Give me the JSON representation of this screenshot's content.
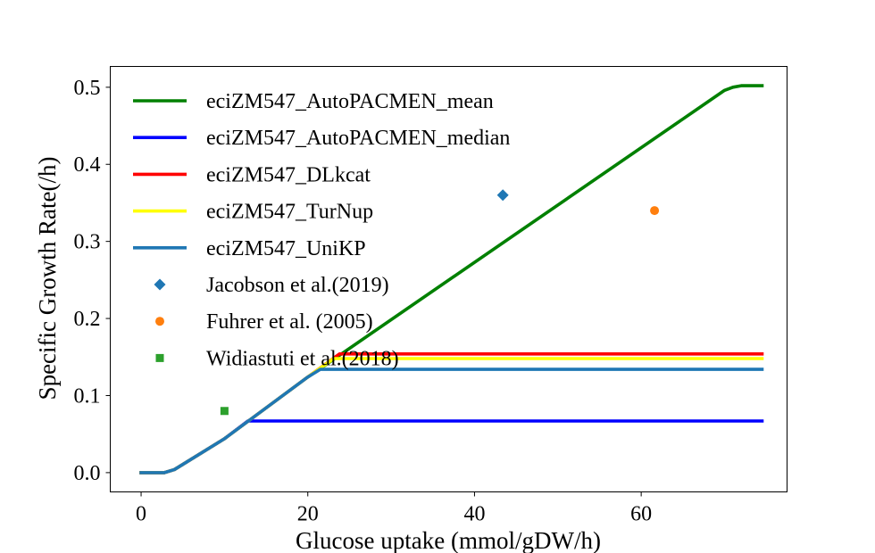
{
  "chart_data": {
    "type": "line",
    "title": "",
    "xlabel": "Glucose uptake (mmol/gDW/h)",
    "ylabel": "Specific Growth Rate(/h)",
    "xlim": [
      -3.7,
      77.5
    ],
    "ylim": [
      -0.025,
      0.527
    ],
    "xticks": [
      0,
      20,
      40,
      60
    ],
    "yticks": [
      0.0,
      0.1,
      0.2,
      0.3,
      0.4,
      0.5
    ],
    "xtick_labels": [
      "0",
      "20",
      "40",
      "60"
    ],
    "ytick_labels": [
      "0.0",
      "0.1",
      "0.2",
      "0.3",
      "0.4",
      "0.5"
    ],
    "grid": false,
    "legend_position": "upper-left",
    "series": [
      {
        "name": "eciZM547_AutoPACMEN_mean",
        "kind": "line",
        "color": "#008000",
        "x": [
          0,
          2.8,
          4,
          10,
          20,
          70,
          71,
          72,
          74.5
        ],
        "y": [
          0,
          0,
          0.004,
          0.044,
          0.124,
          0.496,
          0.5,
          0.502,
          0.502
        ]
      },
      {
        "name": "eciZM547_AutoPACMEN_median",
        "kind": "line",
        "color": "#0000ff",
        "x": [
          0,
          2.8,
          4,
          10,
          12.8,
          74.5
        ],
        "y": [
          0,
          0,
          0.004,
          0.044,
          0.067,
          0.067
        ]
      },
      {
        "name": "eciZM547_DLkcat",
        "kind": "line",
        "color": "#ff0000",
        "x": [
          0,
          2.8,
          4,
          10,
          20,
          23.8,
          74.5
        ],
        "y": [
          0,
          0,
          0.004,
          0.044,
          0.124,
          0.154,
          0.154
        ]
      },
      {
        "name": "eciZM547_TurNup",
        "kind": "line",
        "color": "#ffff00",
        "x": [
          0,
          2.8,
          4,
          10,
          20,
          23.1,
          74.5
        ],
        "y": [
          0,
          0,
          0.004,
          0.044,
          0.124,
          0.148,
          0.148
        ]
      },
      {
        "name": "eciZM547_UniKP",
        "kind": "line",
        "color": "#1f77b4",
        "x": [
          0,
          2.8,
          4,
          10,
          20,
          21.5,
          74.5
        ],
        "y": [
          0,
          0,
          0.004,
          0.044,
          0.124,
          0.134,
          0.134
        ]
      },
      {
        "name": "Jacobson et al.(2019)",
        "kind": "scatter",
        "marker": "diamond",
        "color": "#1f77b4",
        "x": [
          43.4
        ],
        "y": [
          0.36
        ]
      },
      {
        "name": "Fuhrer et al. (2005)",
        "kind": "scatter",
        "marker": "circle",
        "color": "#ff7f0e",
        "x": [
          61.6
        ],
        "y": [
          0.34
        ]
      },
      {
        "name": "Widiastuti et al.(2018)",
        "kind": "scatter",
        "marker": "square",
        "color": "#2ca02c",
        "x": [
          10
        ],
        "y": [
          0.08
        ]
      }
    ]
  }
}
